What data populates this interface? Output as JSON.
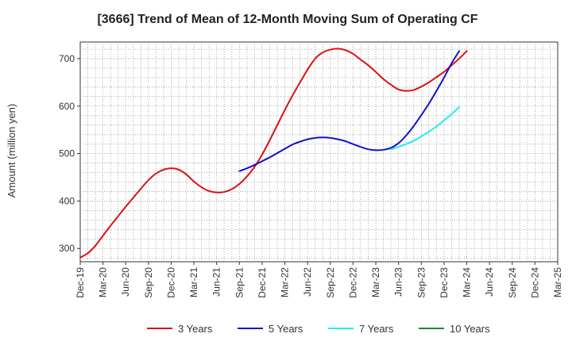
{
  "chart_data": {
    "type": "line",
    "title": "[3666]  Trend of Mean of 12-Month Moving Sum of Operating CF",
    "xlabel": "",
    "ylabel": "Amount (million yen)",
    "x_tick_labels": [
      "Dec-19",
      "Mar-20",
      "Jun-20",
      "Sep-20",
      "Dec-20",
      "Mar-21",
      "Jun-21",
      "Sep-21",
      "Dec-21",
      "Mar-22",
      "Jun-22",
      "Sep-22",
      "Dec-22",
      "Mar-23",
      "Jun-23",
      "Sep-23",
      "Dec-23",
      "Mar-24",
      "Jun-24",
      "Sep-24",
      "Dec-24",
      "Mar-25"
    ],
    "y_ticks": [
      300,
      400,
      500,
      600,
      700
    ],
    "ylim": [
      272,
      735
    ],
    "x_range_months": [
      0,
      63
    ],
    "grid": true,
    "legend_position": "bottom",
    "series": [
      {
        "name": "3 Years",
        "color": "#dd1111",
        "x_months": [
          0,
          1,
          2,
          3,
          4,
          5,
          6,
          7,
          8,
          9,
          10,
          11,
          12,
          13,
          14,
          15,
          16,
          17,
          18,
          19,
          20,
          21,
          22,
          23,
          24,
          25,
          26,
          27,
          28,
          29,
          30,
          31,
          32,
          33,
          34,
          35,
          36,
          37,
          38,
          39,
          40,
          41,
          42,
          43,
          44,
          45,
          46,
          47,
          48,
          49,
          50,
          51,
          52,
          53,
          54,
          55,
          56,
          57
        ],
        "values": [
          281,
          290,
          306,
          327,
          348,
          368,
          388,
          407,
          426,
          444,
          458,
          466,
          469,
          466,
          456,
          441,
          429,
          421,
          418,
          419,
          425,
          436,
          452,
          472,
          498,
          528,
          560,
          592,
          622,
          650,
          677,
          700,
          713,
          719,
          721,
          718,
          710,
          698,
          686,
          672,
          657,
          645,
          635,
          632,
          634,
          641,
          650,
          661,
          672,
          686,
          700,
          716,
          null,
          null,
          null,
          null,
          null,
          null
        ]
      },
      {
        "name": "5 Years",
        "color": "#1111cc",
        "x_months": [
          0,
          1,
          2,
          3,
          4,
          5,
          6,
          7,
          8,
          9,
          10,
          11,
          12,
          13,
          14,
          15,
          16,
          17,
          18,
          19,
          20,
          21,
          22,
          23,
          24,
          25,
          26,
          27,
          28,
          29,
          30,
          31,
          32,
          33,
          34,
          35,
          36,
          37,
          38,
          39,
          40,
          41,
          42,
          43,
          44,
          45,
          46,
          47,
          48,
          49,
          50,
          51,
          52,
          53,
          54,
          55,
          56,
          57
        ],
        "values": [
          null,
          null,
          null,
          null,
          null,
          null,
          null,
          null,
          null,
          null,
          null,
          null,
          null,
          null,
          null,
          null,
          null,
          null,
          null,
          null,
          null,
          463,
          469,
          476,
          484,
          492,
          501,
          510,
          519,
          525,
          530,
          533,
          534,
          533,
          530,
          526,
          520,
          514,
          509,
          507,
          508,
          512,
          522,
          538,
          558,
          581,
          605,
          632,
          660,
          690,
          716,
          null,
          null,
          null,
          null,
          null,
          null,
          null
        ]
      },
      {
        "name": "7 Years",
        "color": "#22eeee",
        "x_months": [
          0,
          1,
          2,
          3,
          4,
          5,
          6,
          7,
          8,
          9,
          10,
          11,
          12,
          13,
          14,
          15,
          16,
          17,
          18,
          19,
          20,
          21,
          22,
          23,
          24,
          25,
          26,
          27,
          28,
          29,
          30,
          31,
          32,
          33,
          34,
          35,
          36,
          37,
          38,
          39,
          40,
          41,
          42,
          43,
          44,
          45,
          46,
          47,
          48,
          49,
          50,
          51,
          52,
          53,
          54,
          55,
          56,
          57
        ],
        "values": [
          null,
          null,
          null,
          null,
          null,
          null,
          null,
          null,
          null,
          null,
          null,
          null,
          null,
          null,
          null,
          null,
          null,
          null,
          null,
          null,
          null,
          null,
          null,
          null,
          null,
          null,
          null,
          null,
          null,
          null,
          null,
          null,
          null,
          null,
          null,
          null,
          null,
          null,
          null,
          null,
          null,
          509,
          514,
          520,
          527,
          536,
          546,
          557,
          570,
          583,
          598,
          null,
          null,
          null,
          null,
          null,
          null,
          null
        ]
      },
      {
        "name": "10 Years",
        "color": "#228822",
        "x_months": [],
        "values": []
      }
    ]
  }
}
